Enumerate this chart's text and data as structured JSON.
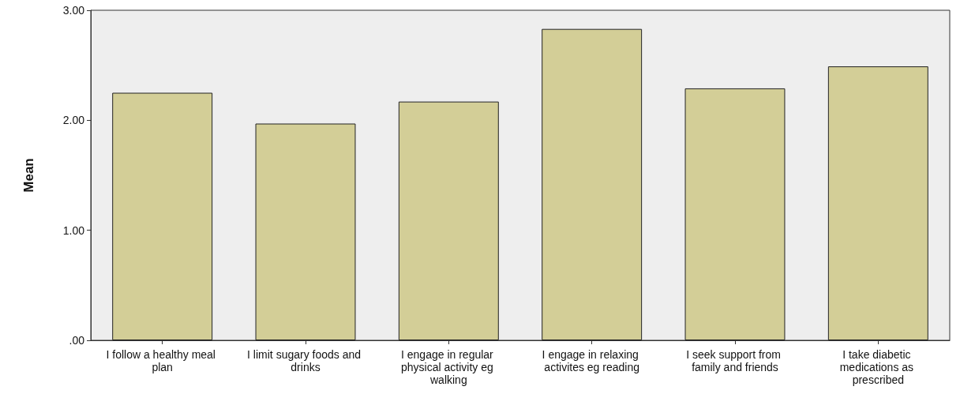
{
  "chart_data": {
    "type": "bar",
    "ylabel": "Mean",
    "categories": [
      "I follow a healthy meal plan",
      "I limit sugary foods and drinks",
      "I engage in regular physical activity eg walking",
      "I engage in relaxing activites eg reading",
      "I seek support from family and friends",
      "I take diabetic medications as prescribed"
    ],
    "values": [
      2.25,
      1.97,
      2.17,
      2.83,
      2.29,
      2.49
    ],
    "color": "#d3ce97",
    "ylim": [
      0,
      3
    ],
    "yticks": [
      {
        "value": 0,
        "label": ".00"
      },
      {
        "value": 1,
        "label": "1.00"
      },
      {
        "value": 2,
        "label": "2.00"
      },
      {
        "value": 3,
        "label": "3.00"
      }
    ],
    "grid": false
  }
}
